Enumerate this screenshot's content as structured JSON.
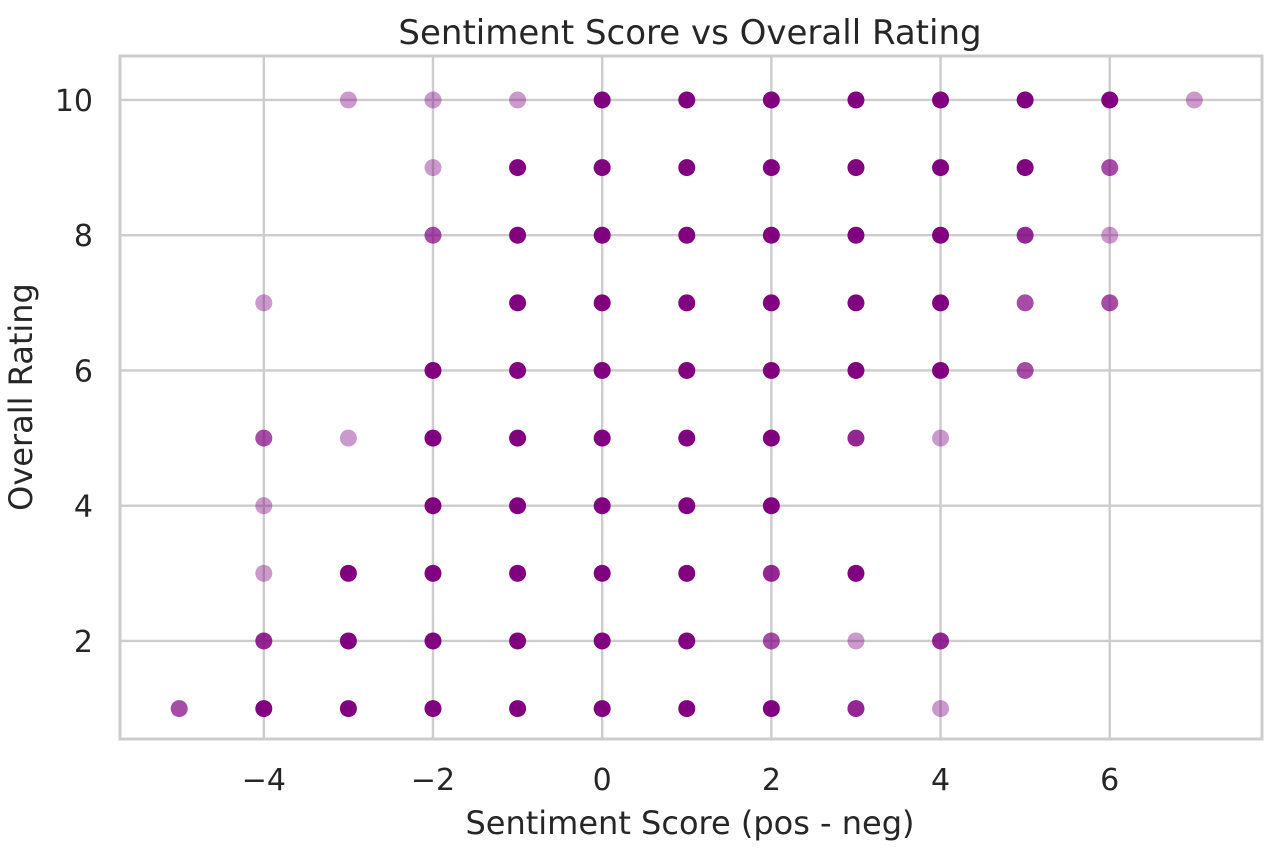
{
  "chart_data": {
    "type": "scatter",
    "title": "Sentiment Score vs Overall Rating",
    "xlabel": "Sentiment Score (pos - neg)",
    "ylabel": "Overall Rating",
    "xlim": [
      -5.7,
      7.8
    ],
    "ylim": [
      0.55,
      10.65
    ],
    "xticks": [
      -4,
      -2,
      0,
      2,
      4,
      6
    ],
    "yticks": [
      2,
      4,
      6,
      8,
      10
    ],
    "grid": true,
    "marker_color": "#800080",
    "points": [
      {
        "x": -3,
        "y": 10,
        "alpha": 0.4
      },
      {
        "x": -2,
        "y": 10,
        "alpha": 0.4
      },
      {
        "x": -1,
        "y": 10,
        "alpha": 0.4
      },
      {
        "x": 0,
        "y": 10,
        "alpha": 1
      },
      {
        "x": 1,
        "y": 10,
        "alpha": 1
      },
      {
        "x": 2,
        "y": 10,
        "alpha": 1
      },
      {
        "x": 3,
        "y": 10,
        "alpha": 1
      },
      {
        "x": 4,
        "y": 10,
        "alpha": 1
      },
      {
        "x": 5,
        "y": 10,
        "alpha": 1
      },
      {
        "x": 6,
        "y": 10,
        "alpha": 1
      },
      {
        "x": 7,
        "y": 10,
        "alpha": 0.4
      },
      {
        "x": -2,
        "y": 9,
        "alpha": 0.4
      },
      {
        "x": -1,
        "y": 9,
        "alpha": 1
      },
      {
        "x": 0,
        "y": 9,
        "alpha": 1
      },
      {
        "x": 1,
        "y": 9,
        "alpha": 1
      },
      {
        "x": 2,
        "y": 9,
        "alpha": 1
      },
      {
        "x": 3,
        "y": 9,
        "alpha": 1
      },
      {
        "x": 4,
        "y": 9,
        "alpha": 1
      },
      {
        "x": 5,
        "y": 9,
        "alpha": 1
      },
      {
        "x": 6,
        "y": 9,
        "alpha": 0.7
      },
      {
        "x": -2,
        "y": 8,
        "alpha": 0.7
      },
      {
        "x": -1,
        "y": 8,
        "alpha": 1
      },
      {
        "x": 0,
        "y": 8,
        "alpha": 1
      },
      {
        "x": 1,
        "y": 8,
        "alpha": 1
      },
      {
        "x": 2,
        "y": 8,
        "alpha": 1
      },
      {
        "x": 3,
        "y": 8,
        "alpha": 1
      },
      {
        "x": 4,
        "y": 8,
        "alpha": 1
      },
      {
        "x": 5,
        "y": 8,
        "alpha": 0.85
      },
      {
        "x": 6,
        "y": 8,
        "alpha": 0.4
      },
      {
        "x": -4,
        "y": 7,
        "alpha": 0.4
      },
      {
        "x": -1,
        "y": 7,
        "alpha": 1
      },
      {
        "x": 0,
        "y": 7,
        "alpha": 1
      },
      {
        "x": 1,
        "y": 7,
        "alpha": 1
      },
      {
        "x": 2,
        "y": 7,
        "alpha": 1
      },
      {
        "x": 3,
        "y": 7,
        "alpha": 1
      },
      {
        "x": 4,
        "y": 7,
        "alpha": 1
      },
      {
        "x": 5,
        "y": 7,
        "alpha": 0.7
      },
      {
        "x": 6,
        "y": 7,
        "alpha": 0.7
      },
      {
        "x": -2,
        "y": 6,
        "alpha": 1
      },
      {
        "x": -1,
        "y": 6,
        "alpha": 1
      },
      {
        "x": 0,
        "y": 6,
        "alpha": 1
      },
      {
        "x": 1,
        "y": 6,
        "alpha": 1
      },
      {
        "x": 2,
        "y": 6,
        "alpha": 1
      },
      {
        "x": 3,
        "y": 6,
        "alpha": 1
      },
      {
        "x": 4,
        "y": 6,
        "alpha": 1
      },
      {
        "x": 5,
        "y": 6,
        "alpha": 0.7
      },
      {
        "x": -4,
        "y": 5,
        "alpha": 0.7
      },
      {
        "x": -3,
        "y": 5,
        "alpha": 0.4
      },
      {
        "x": -2,
        "y": 5,
        "alpha": 1
      },
      {
        "x": -1,
        "y": 5,
        "alpha": 1
      },
      {
        "x": 0,
        "y": 5,
        "alpha": 1
      },
      {
        "x": 1,
        "y": 5,
        "alpha": 1
      },
      {
        "x": 2,
        "y": 5,
        "alpha": 1
      },
      {
        "x": 3,
        "y": 5,
        "alpha": 0.85
      },
      {
        "x": 4,
        "y": 5,
        "alpha": 0.4
      },
      {
        "x": -4,
        "y": 4,
        "alpha": 0.4
      },
      {
        "x": -2,
        "y": 4,
        "alpha": 1
      },
      {
        "x": -1,
        "y": 4,
        "alpha": 1
      },
      {
        "x": 0,
        "y": 4,
        "alpha": 1
      },
      {
        "x": 1,
        "y": 4,
        "alpha": 1
      },
      {
        "x": 2,
        "y": 4,
        "alpha": 1
      },
      {
        "x": -4,
        "y": 3,
        "alpha": 0.4
      },
      {
        "x": -3,
        "y": 3,
        "alpha": 1
      },
      {
        "x": -2,
        "y": 3,
        "alpha": 1
      },
      {
        "x": -1,
        "y": 3,
        "alpha": 1
      },
      {
        "x": 0,
        "y": 3,
        "alpha": 1
      },
      {
        "x": 1,
        "y": 3,
        "alpha": 1
      },
      {
        "x": 2,
        "y": 3,
        "alpha": 0.85
      },
      {
        "x": 3,
        "y": 3,
        "alpha": 1
      },
      {
        "x": -4,
        "y": 2,
        "alpha": 0.85
      },
      {
        "x": -3,
        "y": 2,
        "alpha": 1
      },
      {
        "x": -2,
        "y": 2,
        "alpha": 1
      },
      {
        "x": -1,
        "y": 2,
        "alpha": 1
      },
      {
        "x": 0,
        "y": 2,
        "alpha": 1
      },
      {
        "x": 1,
        "y": 2,
        "alpha": 1
      },
      {
        "x": 2,
        "y": 2,
        "alpha": 0.7
      },
      {
        "x": 3,
        "y": 2,
        "alpha": 0.4
      },
      {
        "x": 4,
        "y": 2,
        "alpha": 0.85
      },
      {
        "x": -5,
        "y": 1,
        "alpha": 0.7
      },
      {
        "x": -4,
        "y": 1,
        "alpha": 1
      },
      {
        "x": -3,
        "y": 1,
        "alpha": 1
      },
      {
        "x": -2,
        "y": 1,
        "alpha": 1
      },
      {
        "x": -1,
        "y": 1,
        "alpha": 1
      },
      {
        "x": 0,
        "y": 1,
        "alpha": 1
      },
      {
        "x": 1,
        "y": 1,
        "alpha": 1
      },
      {
        "x": 2,
        "y": 1,
        "alpha": 1
      },
      {
        "x": 3,
        "y": 1,
        "alpha": 0.85
      },
      {
        "x": 4,
        "y": 1,
        "alpha": 0.4
      }
    ]
  }
}
